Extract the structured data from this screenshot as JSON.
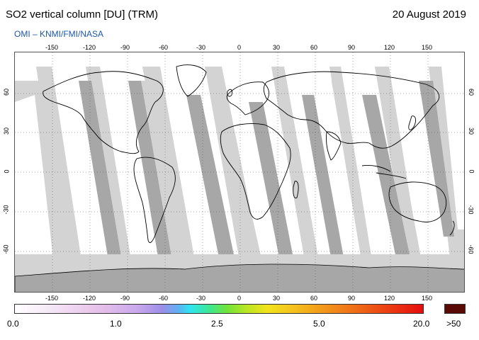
{
  "title": "SO2 vertical column [DU] (TRM)",
  "date": "20 August 2019",
  "credit": "OMI  –  KNMI/FMI/NASA",
  "map": {
    "lon_ticks_top": [
      "-150",
      "-120",
      "-90",
      "-60",
      "-30",
      "0",
      "30",
      "60",
      "90",
      "120",
      "150"
    ],
    "lon_ticks_bottom": [
      "-150",
      "-120",
      "-90",
      "-60",
      "-30",
      "0",
      "30",
      "60",
      "90",
      "120",
      "150"
    ],
    "lat_ticks": [
      "60",
      "30",
      "0",
      "-30",
      "-60"
    ],
    "colors": {
      "data_white": "#ffffff",
      "swath_gap_light": "#d3d3d3",
      "swath_gap_dark": "#a7a7a7",
      "land_outline": "#000000",
      "grid": "#555555"
    }
  },
  "colorbar": {
    "labels": [
      "0.0",
      "1.0",
      "2.5",
      "5.0",
      "20.0",
      ">50"
    ],
    "over_color": "#5a0a06"
  }
}
